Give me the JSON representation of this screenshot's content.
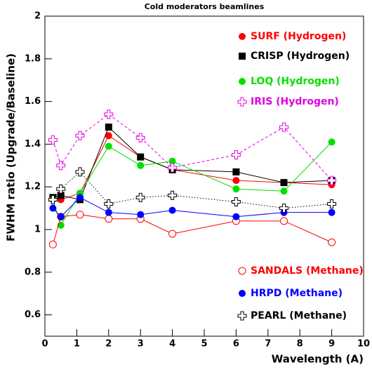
{
  "chart_data": {
    "type": "line",
    "title": "Cold moderators beamlines",
    "x_label": "Wavelength (A)",
    "y_label": "FWHM ratio (Upgrade/Baseline)",
    "x": [
      0.25,
      0.5,
      1.1,
      2,
      3,
      4,
      6,
      7.5,
      9
    ],
    "xlim": [
      0,
      10
    ],
    "xticks": [
      0,
      1,
      2,
      3,
      4,
      5,
      6,
      7,
      8,
      9,
      10
    ],
    "ylim": [
      0.5,
      2
    ],
    "yticks": [
      0.6,
      0.8,
      1,
      1.2,
      1.4,
      1.6,
      1.8,
      2
    ],
    "series": [
      {
        "name": "SURF (Hydrogen)",
        "color": "#ff0000",
        "marker": "circle",
        "line_style": "solid",
        "values": [
          1.15,
          1.14,
          1.17,
          1.44,
          1.34,
          1.28,
          1.23,
          1.22,
          1.21
        ]
      },
      {
        "name": "CRISP (Hydrogen)",
        "color": "#000000",
        "marker": "square",
        "line_style": "solid",
        "values": [
          1.15,
          1.16,
          1.14,
          1.48,
          1.34,
          1.28,
          1.27,
          1.22,
          1.23
        ]
      },
      {
        "name": "LOQ (Hydrogen)",
        "color": "#00e000",
        "marker": "circle",
        "line_style": "solid",
        "values": [
          1.14,
          1.02,
          1.17,
          1.39,
          1.3,
          1.32,
          1.19,
          1.18,
          1.41
        ]
      },
      {
        "name": "IRIS (Hydrogen)",
        "color": "#e000e0",
        "marker": "open-cross",
        "line_style": "dashed",
        "values": [
          1.42,
          1.3,
          1.44,
          1.54,
          1.43,
          1.29,
          1.35,
          1.48,
          1.23
        ]
      },
      {
        "name": "SANDALS (Methane)",
        "color": "#ff0000",
        "marker": "open-circle",
        "line_style": "solid",
        "values": [
          0.93,
          1.06,
          1.07,
          1.05,
          1.05,
          0.98,
          1.04,
          1.04,
          0.94
        ]
      },
      {
        "name": "HRPD (Methane)",
        "color": "#0000ff",
        "marker": "circle",
        "line_style": "solid",
        "values": [
          1.1,
          1.06,
          1.15,
          1.08,
          1.07,
          1.09,
          1.06,
          1.08,
          1.08
        ]
      },
      {
        "name": "PEARL (Methane)",
        "color": "#000000",
        "marker": "open-cross",
        "line_style": "dotted",
        "values": [
          1.14,
          1.19,
          1.27,
          1.12,
          1.15,
          1.16,
          1.13,
          1.1,
          1.12
        ]
      }
    ]
  }
}
